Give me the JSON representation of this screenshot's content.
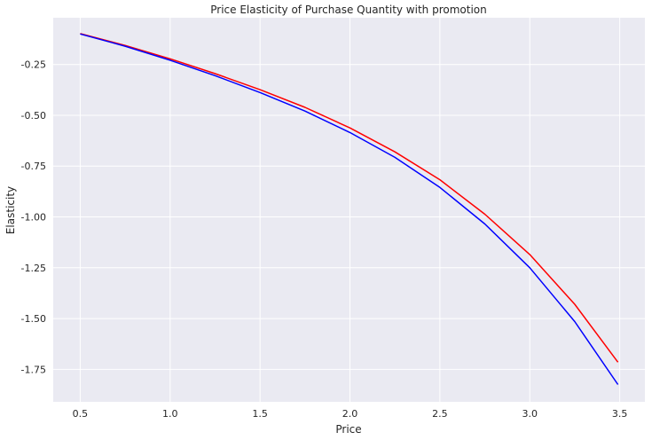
{
  "chart_data": {
    "type": "line",
    "title": "Price Elasticity of Purchase Quantity with promotion",
    "xlabel": "Price",
    "ylabel": "Elasticity",
    "xlim": [
      0.35,
      3.64
    ],
    "ylim": [
      -1.91,
      -0.02
    ],
    "xticks": [
      "0.5",
      "1.0",
      "1.5",
      "2.0",
      "2.5",
      "3.0",
      "3.5"
    ],
    "yticks": [
      "-0.25",
      "-0.50",
      "-0.75",
      "-1.00",
      "-1.25",
      "-1.50",
      "-1.75"
    ],
    "grid": true,
    "background": "#eaeaf2",
    "series": [
      {
        "color": "#ff0000",
        "x": [
          0.5,
          0.75,
          1.0,
          1.25,
          1.5,
          1.75,
          2.0,
          2.25,
          2.5,
          2.75,
          3.0,
          3.25,
          3.49
        ],
        "y": [
          -0.098,
          -0.156,
          -0.222,
          -0.295,
          -0.374,
          -0.461,
          -0.562,
          -0.68,
          -0.817,
          -0.987,
          -1.185,
          -1.43,
          -1.715
        ]
      },
      {
        "color": "#0000ff",
        "x": [
          0.5,
          0.75,
          1.0,
          1.25,
          1.5,
          1.75,
          2.0,
          2.25,
          2.5,
          2.75,
          3.0,
          3.25,
          3.49
        ],
        "y": [
          -0.1,
          -0.16,
          -0.229,
          -0.305,
          -0.388,
          -0.479,
          -0.585,
          -0.707,
          -0.855,
          -1.035,
          -1.25,
          -1.515,
          -1.825
        ]
      }
    ]
  }
}
